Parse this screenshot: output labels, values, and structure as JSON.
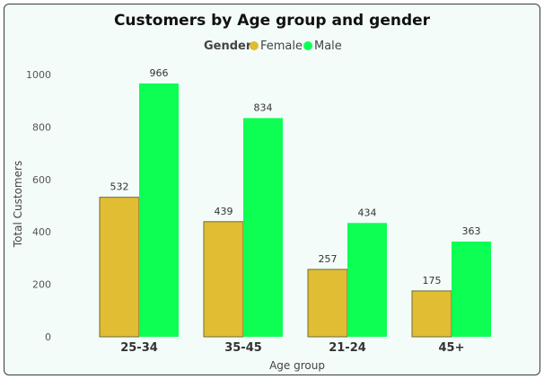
{
  "colors": {
    "female": "#e0bd32",
    "male": "#0dff53",
    "bar_stroke": "#6b6b3a",
    "text": "#333333",
    "axis_text": "#555555"
  },
  "chart_data": {
    "type": "bar",
    "title": "Customers by Age group and gender",
    "xlabel": "Age group",
    "ylabel": "Total Customers",
    "legend_title": "Gender",
    "legend_position": "top-center",
    "categories": [
      "25-34",
      "35-45",
      "21-24",
      "45+"
    ],
    "series": [
      {
        "name": "Female",
        "values": [
          532,
          439,
          257,
          175
        ]
      },
      {
        "name": "Male",
        "values": [
          966,
          834,
          434,
          363
        ]
      }
    ],
    "ylim": [
      0,
      1000
    ],
    "yticks": [
      0,
      200,
      400,
      600,
      800,
      1000
    ],
    "grid": false
  }
}
